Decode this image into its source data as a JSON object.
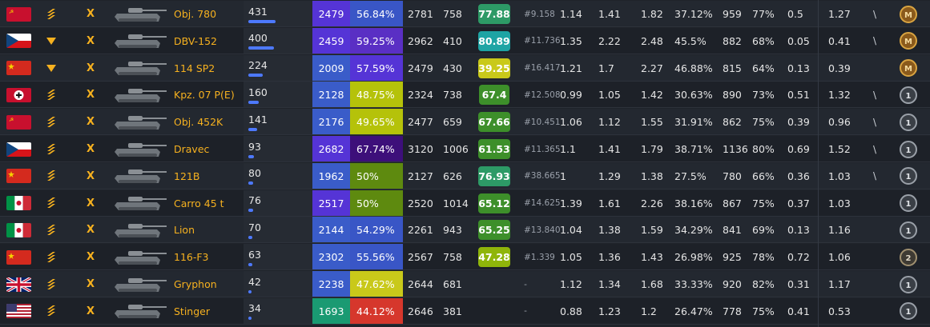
{
  "colors": {
    "gold": "#f6b11f",
    "purple": "#6a37d8",
    "blue": "#3a5cc9",
    "teal": "#1aa4a0",
    "green_dark": "#2d8a4f",
    "olive": "#5e8a0f",
    "yellow": "#c9c91a",
    "deep_purple": "#45108a",
    "red": "#d6372c"
  },
  "rows": [
    {
      "flag": "ussr",
      "rank": "chevrons-icon",
      "tier": "X",
      "name": "Obj. 780",
      "battles": "431",
      "battles_fraction": 1.0,
      "wn8": "2479",
      "wn8_color": "#5534d6",
      "winrate": "56.84%",
      "winrate_color": "#3956c6",
      "dmg": "2781",
      "frags": "758",
      "mark": "77.88",
      "mark_color": "#2d9a66",
      "pos": "#9.158",
      "c1": "1.14",
      "c2": "1.41",
      "c3": "1.82",
      "c4": "37.12%",
      "c5": "959",
      "c6": "77%",
      "c7": "0.5",
      "c8": "1.27",
      "slash": "\\",
      "badge": "mastery-m-icon"
    },
    {
      "flag": "czech",
      "rank": "triangle-down-icon",
      "tier": "X",
      "name": "DBV-152",
      "battles": "400",
      "battles_fraction": 0.93,
      "wn8": "2459",
      "wn8_color": "#5534d6",
      "winrate": "59.25%",
      "winrate_color": "#5a2fc4",
      "dmg": "2962",
      "frags": "410",
      "mark": "80.89",
      "mark_color": "#1ea4a4",
      "pos": "#11.736",
      "c1": "1.35",
      "c2": "2.22",
      "c3": "2.48",
      "c4": "45.5%",
      "c5": "882",
      "c6": "68%",
      "c7": "0.05",
      "c8": "0.41",
      "slash": "\\",
      "badge": "mastery-m-icon"
    },
    {
      "flag": "china",
      "rank": "triangle-down-icon",
      "tier": "X",
      "name": "114 SP2",
      "battles": "224",
      "battles_fraction": 0.52,
      "wn8": "2009",
      "wn8_color": "#3a5cc9",
      "winrate": "57.59%",
      "winrate_color": "#5534d6",
      "dmg": "2479",
      "frags": "430",
      "mark": "39.25",
      "mark_color": "#c9c91a",
      "pos": "#16.417",
      "c1": "1.21",
      "c2": "1.7",
      "c3": "2.27",
      "c4": "46.88%",
      "c5": "815",
      "c6": "64%",
      "c7": "0.13",
      "c8": "0.39",
      "slash": "",
      "badge": "mastery-m-icon"
    },
    {
      "flag": "germany",
      "rank": "chevrons-icon",
      "tier": "X",
      "name": "Kpz. 07 P(E)",
      "battles": "160",
      "battles_fraction": 0.37,
      "wn8": "2128",
      "wn8_color": "#3a5cc9",
      "winrate": "48.75%",
      "winrate_color": "#b5c20a",
      "dmg": "2324",
      "frags": "738",
      "mark": "67.4",
      "mark_color": "#3d8f2a",
      "pos": "#12.508",
      "c1": "0.99",
      "c2": "1.05",
      "c3": "1.42",
      "c4": "30.63%",
      "c5": "890",
      "c6": "73%",
      "c7": "0.51",
      "c8": "1.32",
      "slash": "\\",
      "badge": "mastery-1-icon"
    },
    {
      "flag": "ussr",
      "rank": "chevrons-icon",
      "tier": "X",
      "name": "Obj. 452K",
      "battles": "141",
      "battles_fraction": 0.33,
      "wn8": "2176",
      "wn8_color": "#3a5cc9",
      "winrate": "49.65%",
      "winrate_color": "#b5c20a",
      "dmg": "2477",
      "frags": "659",
      "mark": "67.66",
      "mark_color": "#3d8f2a",
      "pos": "#10.451",
      "c1": "1.06",
      "c2": "1.12",
      "c3": "1.55",
      "c4": "31.91%",
      "c5": "862",
      "c6": "75%",
      "c7": "0.39",
      "c8": "0.96",
      "slash": "\\",
      "badge": "mastery-1-icon"
    },
    {
      "flag": "czech",
      "rank": "chevrons-icon",
      "tier": "X",
      "name": "Dravec",
      "battles": "93",
      "battles_fraction": 0.22,
      "wn8": "2682",
      "wn8_color": "#5534d6",
      "winrate": "67.74%",
      "winrate_color": "#3d0f7a",
      "dmg": "3120",
      "frags": "1006",
      "mark": "61.53",
      "mark_color": "#3d8f2a",
      "pos": "#11.365",
      "c1": "1.1",
      "c2": "1.41",
      "c3": "1.79",
      "c4": "38.71%",
      "c5": "1136",
      "c6": "80%",
      "c7": "0.69",
      "c8": "1.52",
      "slash": "\\",
      "badge": "mastery-1-icon"
    },
    {
      "flag": "china",
      "rank": "chevrons-icon",
      "tier": "X",
      "name": "121B",
      "battles": "80",
      "battles_fraction": 0.19,
      "wn8": "1962",
      "wn8_color": "#3a5cc9",
      "winrate": "50%",
      "winrate_color": "#5e8a0f",
      "dmg": "2127",
      "frags": "626",
      "mark": "76.93",
      "mark_color": "#2d9a66",
      "pos": "#38.665",
      "c1": "1",
      "c2": "1.29",
      "c3": "1.38",
      "c4": "27.5%",
      "c5": "780",
      "c6": "66%",
      "c7": "0.36",
      "c8": "1.03",
      "slash": "\\",
      "badge": "mastery-1-icon"
    },
    {
      "flag": "italy",
      "rank": "chevrons-icon",
      "tier": "X",
      "name": "Carro 45 t",
      "battles": "76",
      "battles_fraction": 0.18,
      "wn8": "2517",
      "wn8_color": "#5534d6",
      "winrate": "50%",
      "winrate_color": "#5e8a0f",
      "dmg": "2520",
      "frags": "1014",
      "mark": "65.12",
      "mark_color": "#3d8f2a",
      "pos": "#14.625",
      "c1": "1.39",
      "c2": "1.61",
      "c3": "2.26",
      "c4": "38.16%",
      "c5": "867",
      "c6": "75%",
      "c7": "0.37",
      "c8": "1.03",
      "slash": "",
      "badge": "mastery-1-icon"
    },
    {
      "flag": "italy",
      "rank": "chevrons-icon",
      "tier": "X",
      "name": "Lion",
      "battles": "70",
      "battles_fraction": 0.16,
      "wn8": "2144",
      "wn8_color": "#3a5cc9",
      "winrate": "54.29%",
      "winrate_color": "#3956c6",
      "dmg": "2261",
      "frags": "943",
      "mark": "65.25",
      "mark_color": "#3d8f2a",
      "pos": "#13.840",
      "c1": "1.04",
      "c2": "1.38",
      "c3": "1.59",
      "c4": "34.29%",
      "c5": "841",
      "c6": "69%",
      "c7": "0.13",
      "c8": "1.16",
      "slash": "",
      "badge": "mastery-1-icon"
    },
    {
      "flag": "china",
      "rank": "chevrons-icon",
      "tier": "X",
      "name": "116-F3",
      "battles": "63",
      "battles_fraction": 0.15,
      "wn8": "2302",
      "wn8_color": "#3a5cc9",
      "winrate": "55.56%",
      "winrate_color": "#3956c6",
      "dmg": "2567",
      "frags": "758",
      "mark": "47.28",
      "mark_color": "#8fb50a",
      "pos": "#1.339",
      "c1": "1.05",
      "c2": "1.36",
      "c3": "1.43",
      "c4": "26.98%",
      "c5": "925",
      "c6": "78%",
      "c7": "0.72",
      "c8": "1.06",
      "slash": "",
      "badge": "mastery-2-icon"
    },
    {
      "flag": "uk",
      "rank": "chevrons-icon",
      "tier": "X",
      "name": "Gryphon",
      "battles": "42",
      "battles_fraction": 0.1,
      "wn8": "2238",
      "wn8_color": "#3a5cc9",
      "winrate": "47.62%",
      "winrate_color": "#c9c91a",
      "dmg": "2644",
      "frags": "681",
      "mark": "",
      "mark_color": "",
      "pos": "-",
      "c1": "1.12",
      "c2": "1.34",
      "c3": "1.68",
      "c4": "33.33%",
      "c5": "920",
      "c6": "82%",
      "c7": "0.31",
      "c8": "1.17",
      "slash": "",
      "badge": "mastery-1-icon"
    },
    {
      "flag": "usa",
      "rank": "chevrons-icon",
      "tier": "X",
      "name": "Stinger",
      "battles": "34",
      "battles_fraction": 0.08,
      "wn8": "1693",
      "wn8_color": "#1a9a72",
      "winrate": "44.12%",
      "winrate_color": "#d6372c",
      "dmg": "2646",
      "frags": "381",
      "mark": "",
      "mark_color": "",
      "pos": "-",
      "c1": "0.88",
      "c2": "1.23",
      "c3": "1.2",
      "c4": "26.47%",
      "c5": "778",
      "c6": "75%",
      "c7": "0.41",
      "c8": "0.53",
      "slash": "",
      "badge": "mastery-1-icon"
    }
  ]
}
